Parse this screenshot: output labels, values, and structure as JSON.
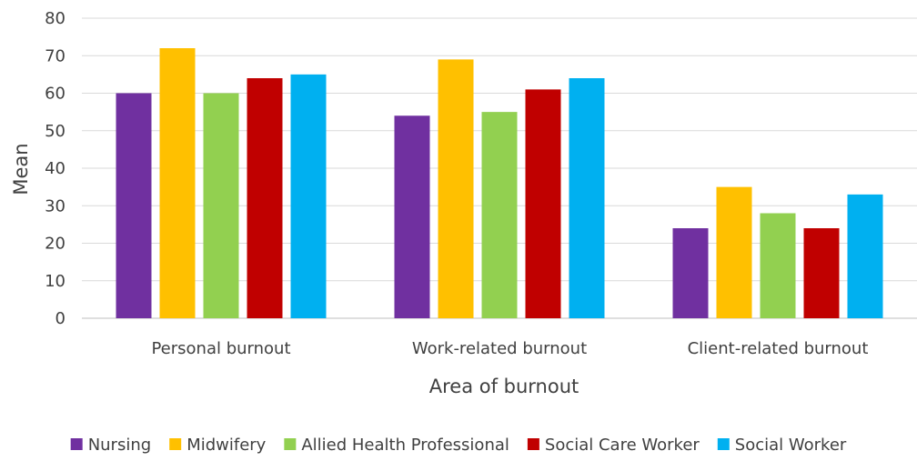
{
  "chart_data": {
    "type": "bar",
    "title": "",
    "xlabel": "Area of burnout",
    "ylabel": "Mean",
    "ylim": [
      0,
      80
    ],
    "yticks": [
      0,
      10,
      20,
      30,
      40,
      50,
      60,
      70,
      80
    ],
    "grid": true,
    "legend_position": "bottom",
    "categories": [
      "Personal burnout",
      "Work-related burnout",
      "Client-related burnout"
    ],
    "series": [
      {
        "name": "Nursing",
        "color": "#7030a0",
        "values": [
          60,
          54,
          24
        ]
      },
      {
        "name": "Midwifery",
        "color": "#ffc000",
        "values": [
          72,
          69,
          35
        ]
      },
      {
        "name": "Allied Health Professional",
        "color": "#92d050",
        "values": [
          60,
          55,
          28
        ]
      },
      {
        "name": "Social Care Worker",
        "color": "#c00000",
        "values": [
          64,
          61,
          24
        ]
      },
      {
        "name": "Social Worker",
        "color": "#00b0f0",
        "values": [
          65,
          64,
          33
        ]
      }
    ]
  }
}
